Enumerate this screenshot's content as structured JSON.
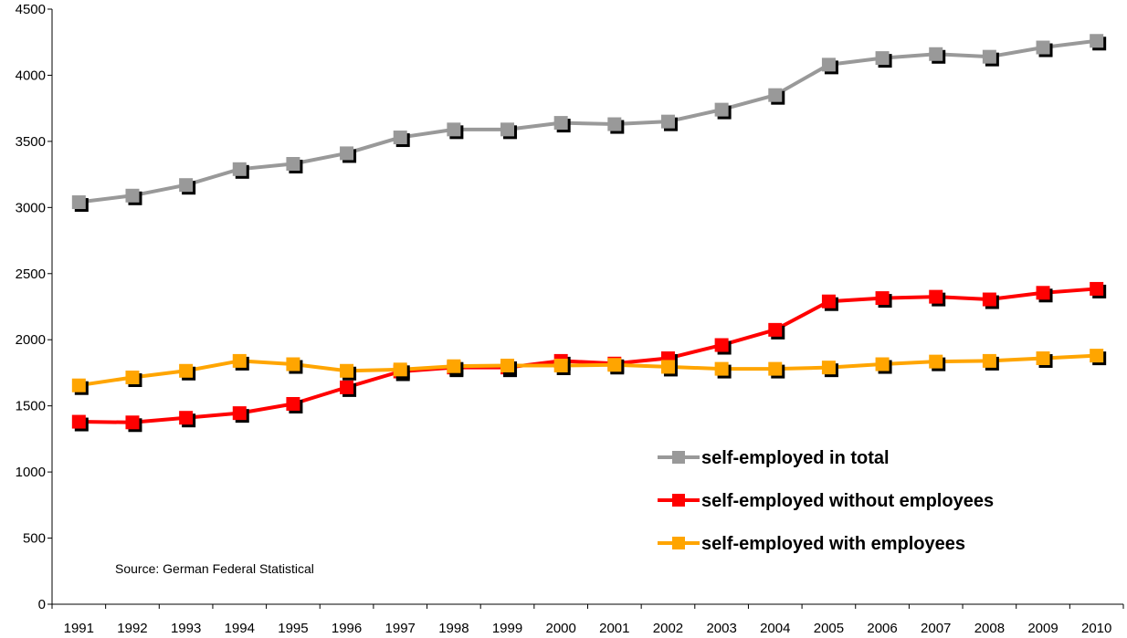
{
  "chart_data": {
    "type": "line",
    "title": "",
    "xlabel": "",
    "ylabel": "",
    "categories": [
      "1991",
      "1992",
      "1993",
      "1994",
      "1995",
      "1996",
      "1997",
      "1998",
      "1999",
      "2000",
      "2001",
      "2002",
      "2003",
      "2004",
      "2005",
      "2006",
      "2007",
      "2008",
      "2009",
      "2010"
    ],
    "yticks": [
      "0",
      "500",
      "1000",
      "1500",
      "2000",
      "2500",
      "3000",
      "3500",
      "4000",
      "4500"
    ],
    "ylim": [
      0,
      4500
    ],
    "grid": false,
    "legend_position": "bottom-right",
    "annotation": "Source: German Federal Statistical",
    "series": [
      {
        "name": "self-employed in total",
        "color": "#999999",
        "marker": "square",
        "values": [
          3040,
          3090,
          3170,
          3290,
          3330,
          3410,
          3530,
          3590,
          3590,
          3640,
          3630,
          3650,
          3740,
          3850,
          4080,
          4130,
          4160,
          4140,
          4210,
          4260
        ]
      },
      {
        "name": "self-employed without employees",
        "color": "#ff0000",
        "marker": "square",
        "values": [
          1380,
          1375,
          1410,
          1445,
          1515,
          1640,
          1760,
          1790,
          1790,
          1840,
          1820,
          1860,
          1960,
          2075,
          2290,
          2315,
          2325,
          2305,
          2355,
          2385
        ]
      },
      {
        "name": "self-employed with employees",
        "color": "#ffa500",
        "marker": "square",
        "values": [
          1655,
          1715,
          1765,
          1840,
          1815,
          1765,
          1775,
          1800,
          1805,
          1805,
          1810,
          1795,
          1780,
          1780,
          1790,
          1815,
          1835,
          1840,
          1860,
          1880
        ]
      }
    ]
  }
}
